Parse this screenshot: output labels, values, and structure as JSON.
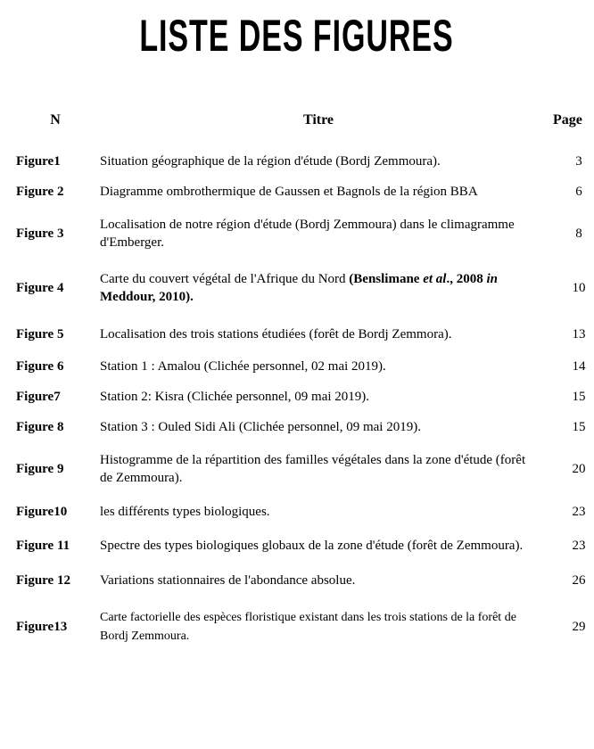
{
  "page_title": "LISTE DES FIGURES",
  "columns": {
    "n": "N",
    "titre": "Titre",
    "page": "Page"
  },
  "rows": [
    {
      "n": "Figure1",
      "titre": "Situation géographique de la région d'étude (Bordj Zemmoura).",
      "page": "3"
    },
    {
      "n": "Figure 2",
      "titre": "Diagramme ombrothermique de Gaussen et Bagnols de la région BBA",
      "page": "6"
    },
    {
      "n": "Figure 3",
      "titre": "Localisation de notre région d'étude (Bordj Zemmoura) dans le climagramme d'Emberger.",
      "page": "8"
    },
    {
      "n": "Figure 4",
      "titre_html": "Carte du couvert végétal de l'Afrique du Nord <span class=\"bold\">(Benslimane <span class=\"ital\">et al</span>., 2008 <span class=\"ital\">in</span> Meddour, 2010).</span>",
      "page": "10"
    },
    {
      "n": "Figure 5",
      "titre": "Localisation des trois stations étudiées (forêt de Bordj Zemmora).",
      "page": "13"
    },
    {
      "n": "Figure 6",
      "titre": "Station 1 : Amalou (Clichée personnel, 02 mai 2019).",
      "page": "14"
    },
    {
      "n": "Figure7",
      "titre": "Station 2: Kisra (Clichée personnel, 09 mai 2019).",
      "page": "15"
    },
    {
      "n": "Figure 8",
      "titre": "Station 3 : Ouled Sidi Ali (Clichée personnel, 09 mai 2019).",
      "page": "15"
    },
    {
      "n": "Figure 9",
      "titre": "Histogramme de la répartition des familles végétales dans la zone d'étude (forêt de Zemmoura).",
      "page": "20"
    },
    {
      "n": "Figure10",
      "titre": "les différents types biologiques.",
      "page": "23"
    },
    {
      "n": "Figure 11",
      "titre": "Spectre des types biologiques globaux de la zone d'étude (forêt de Zemmoura).",
      "page": "23"
    },
    {
      "n": "Figure 12",
      "titre": "Variations stationnaires de l'abondance absolue.",
      "page": "26"
    },
    {
      "n": "Figure13",
      "titre_html": "<span class=\"small\">Carte factorielle des espèces floristique existant dans les trois stations de la forêt de Bordj Zemmoura.</span>",
      "page": "29"
    }
  ],
  "row_spacing": [
    "",
    "",
    "row-sp-md",
    "row-sp-lg",
    "row-sp-md",
    "",
    "",
    "",
    "row-sp-md",
    "row-sp-md",
    "row-sp-md",
    "row-sp-md",
    "row-sp-lg"
  ]
}
